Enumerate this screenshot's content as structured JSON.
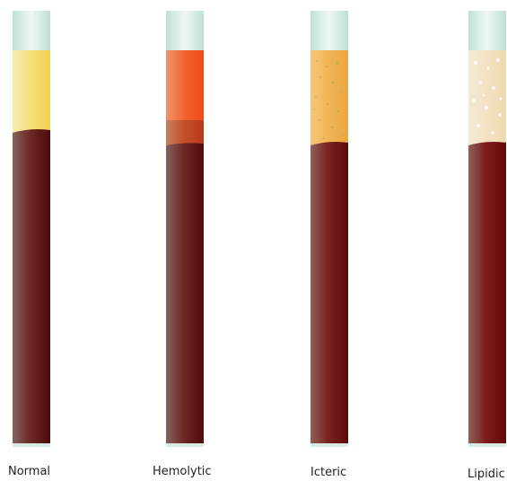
{
  "tubes": [
    {
      "id": "normal",
      "label": "Normal",
      "serum_color": "#f4dd75",
      "icon": "test-tube-icon"
    },
    {
      "id": "hemolytic",
      "label": "Hemolytic",
      "serum_color": "#f05a2c",
      "icon": "test-tube-icon"
    },
    {
      "id": "icteric",
      "label": "Icteric",
      "serum_color": "#f0b455",
      "icon": "test-tube-icon"
    },
    {
      "id": "lipidic",
      "label": "Lipidic",
      "serum_color": "#f2e3c8",
      "icon": "test-tube-icon"
    }
  ],
  "colors": {
    "cap": "#d7eee6",
    "cap_highlight": "#f3fbf8",
    "blood_dark": "#5a0c0c",
    "blood_light": "#8a6a66",
    "background": "#ffffff"
  }
}
